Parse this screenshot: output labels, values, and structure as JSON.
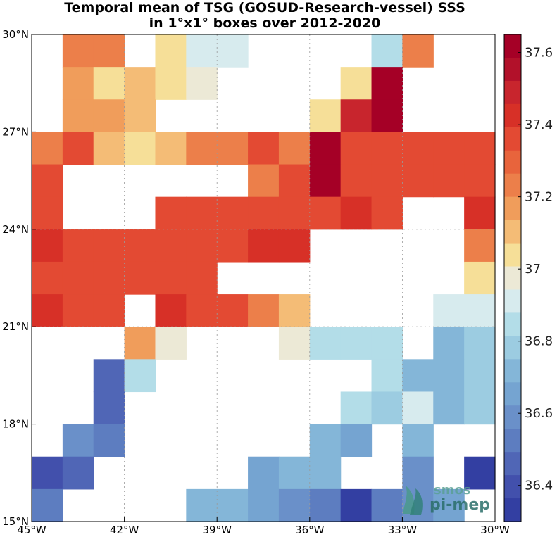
{
  "chart_data": {
    "type": "heatmap",
    "title": "Temporal mean of TSG (GOSUD-Research-vessel) SSS",
    "subtitle": "in 1°x1° boxes over 2012-2020",
    "x_ticks": [
      "45°W",
      "42°W",
      "39°W",
      "36°W",
      "33°W",
      "30°W"
    ],
    "y_ticks": [
      "30°N",
      "27°N",
      "24°N",
      "21°N",
      "18°N",
      "15°N"
    ],
    "x_range": [
      -45,
      -30
    ],
    "y_range": [
      15,
      30
    ],
    "grid": true,
    "colorbar": {
      "ticks": [
        "37.6",
        "37.4",
        "37.2",
        "37",
        "36.8",
        "36.6",
        "36.4"
      ],
      "tick_values": [
        37.6,
        37.4,
        37.2,
        37.0,
        36.8,
        36.6,
        36.4
      ],
      "range": [
        36.3,
        37.65
      ],
      "colors": [
        "#a50026",
        "#b2112a",
        "#c8252d",
        "#d73027",
        "#e34a33",
        "#e8643c",
        "#ec7f4a",
        "#f09d5b",
        "#f4bc76",
        "#f6df98",
        "#ece9d6",
        "#d7ebee",
        "#b3dde8",
        "#9ccce1",
        "#84b6d8",
        "#75a4d1",
        "#6a90c9",
        "#5d7dc0",
        "#5066b6",
        "#4250ac",
        "#333fa2"
      ]
    },
    "rows_top_to_bottom_lat_29_to_15": [
      [
        null,
        37.24,
        37.24,
        null,
        37.05,
        36.94,
        36.94,
        null,
        null,
        null,
        null,
        36.86,
        37.24,
        null,
        null
      ],
      [
        null,
        37.19,
        37.06,
        37.12,
        37.05,
        37.0,
        null,
        null,
        null,
        null,
        37.06,
        37.6,
        null,
        null,
        null
      ],
      [
        null,
        37.19,
        37.19,
        37.12,
        null,
        null,
        null,
        null,
        null,
        37.06,
        37.5,
        37.6,
        null,
        null,
        null
      ],
      [
        37.24,
        37.33,
        37.12,
        37.06,
        37.12,
        37.24,
        37.24,
        37.33,
        37.24,
        37.6,
        37.38,
        37.38,
        37.33,
        37.38,
        37.38
      ],
      [
        37.38,
        null,
        null,
        null,
        null,
        null,
        null,
        37.24,
        37.38,
        37.6,
        37.33,
        37.33,
        37.38,
        37.33,
        37.33
      ],
      [
        37.38,
        null,
        null,
        null,
        37.38,
        37.38,
        37.38,
        37.38,
        37.33,
        37.38,
        37.45,
        37.38,
        null,
        null,
        37.45
      ],
      [
        37.42,
        37.38,
        37.38,
        37.38,
        37.38,
        37.38,
        37.38,
        37.42,
        37.42,
        null,
        null,
        null,
        null,
        null,
        37.24
      ],
      [
        37.38,
        37.38,
        37.38,
        37.33,
        37.38,
        37.33,
        null,
        null,
        null,
        null,
        null,
        null,
        null,
        null,
        37.06
      ],
      [
        37.45,
        37.33,
        37.33,
        null,
        37.45,
        37.33,
        37.33,
        37.24,
        37.12,
        null,
        null,
        null,
        null,
        36.94,
        36.94
      ],
      [
        null,
        null,
        null,
        37.19,
        37.0,
        null,
        null,
        null,
        37.0,
        36.86,
        36.86,
        36.86,
        null,
        36.7,
        36.78
      ],
      [
        null,
        null,
        36.47,
        36.82,
        null,
        null,
        null,
        null,
        null,
        null,
        null,
        36.86,
        36.7,
        36.7,
        36.78
      ],
      [
        null,
        null,
        36.43,
        null,
        null,
        null,
        null,
        null,
        null,
        null,
        36.86,
        36.78,
        36.94,
        36.7,
        36.78
      ],
      [
        null,
        36.6,
        36.55,
        null,
        null,
        null,
        null,
        null,
        null,
        36.7,
        36.65,
        null,
        36.74,
        null,
        null
      ],
      [
        36.38,
        36.43,
        null,
        null,
        null,
        null,
        null,
        36.65,
        36.74,
        36.74,
        null,
        null,
        36.6,
        null,
        36.35
      ],
      [
        36.55,
        null,
        null,
        null,
        null,
        36.7,
        36.7,
        36.65,
        36.6,
        36.5,
        36.35,
        36.55,
        36.6,
        36.65,
        null
      ]
    ]
  },
  "logo": {
    "line1": "smos",
    "line2": "pi-mep"
  }
}
